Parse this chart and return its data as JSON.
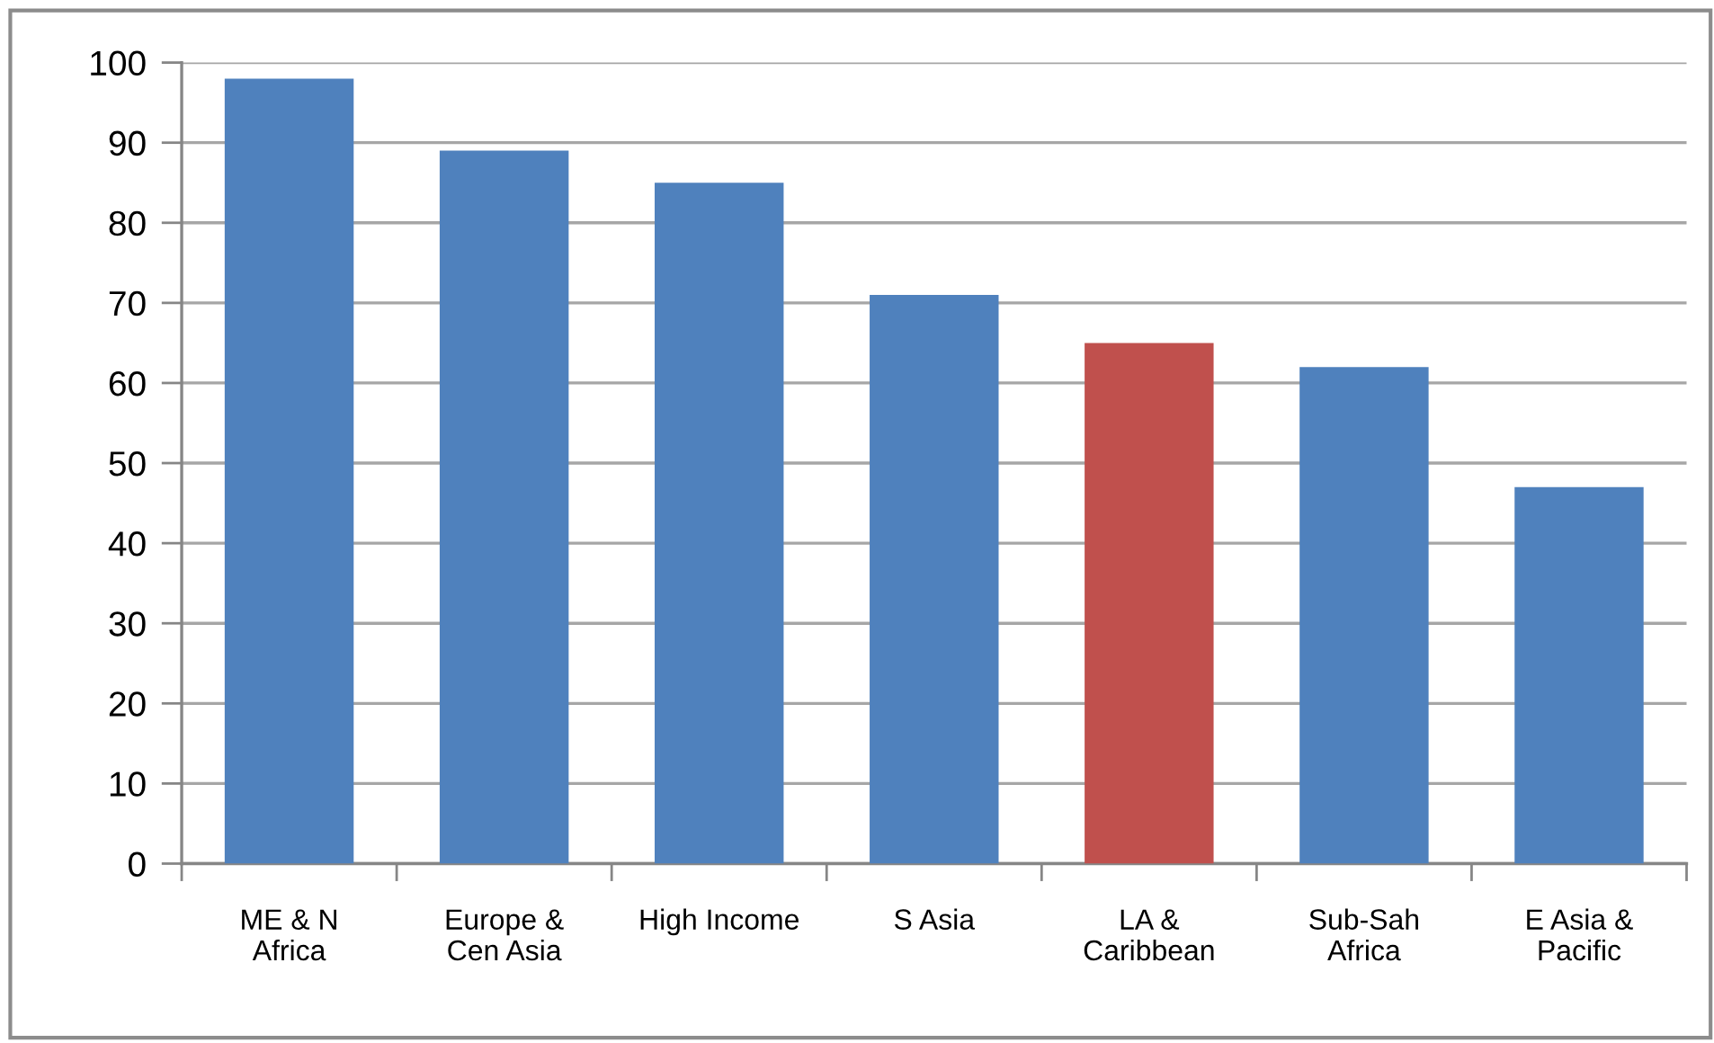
{
  "chart_data": {
    "type": "bar",
    "categories": [
      "ME & N\nAfrica",
      "Europe &\nCen Asia",
      "High Income",
      "S Asia",
      "LA &\nCaribbean",
      "Sub-Sah\nAfrica",
      "E Asia &\nPacific"
    ],
    "values": [
      98,
      89,
      85,
      71,
      65,
      62,
      47
    ],
    "colors": [
      "#4f81bd",
      "#4f81bd",
      "#4f81bd",
      "#4f81bd",
      "#c0504d",
      "#4f81bd",
      "#4f81bd"
    ],
    "ylim": [
      0,
      100
    ],
    "yticks": [
      0,
      10,
      20,
      30,
      40,
      50,
      60,
      70,
      80,
      90,
      100
    ],
    "grid": "y"
  }
}
